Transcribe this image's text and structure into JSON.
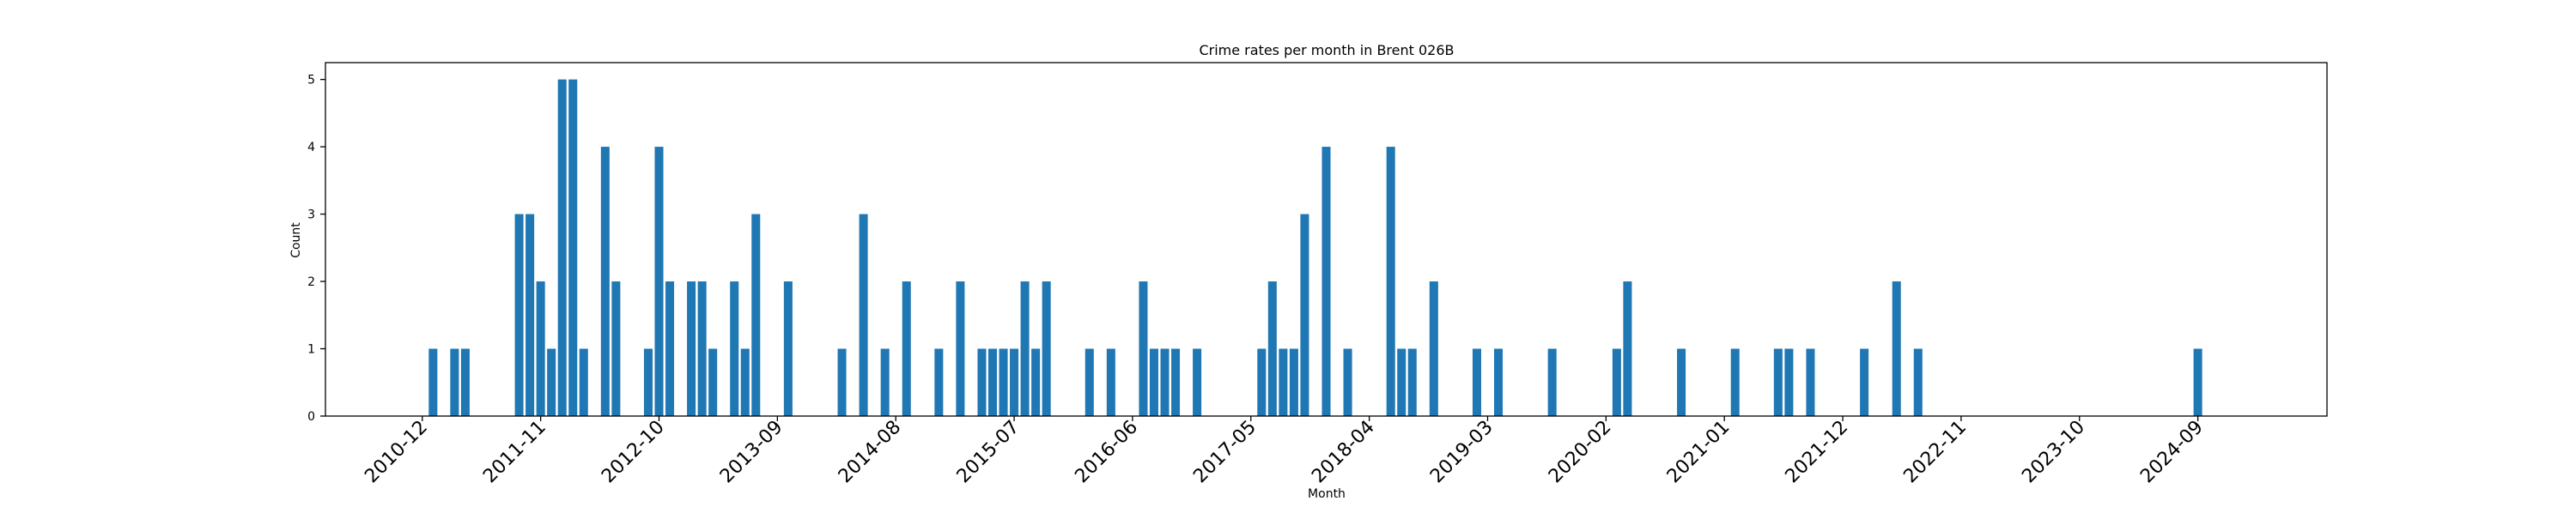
{
  "chart_data": {
    "type": "bar",
    "title": "Crime rates per month in Brent 026B",
    "xlabel": "Month",
    "ylabel": "Count",
    "x_tick_labels": [
      "2010-12",
      "2011-11",
      "2012-10",
      "2013-09",
      "2014-08",
      "2015-07",
      "2016-06",
      "2017-05",
      "2018-04",
      "2019-03",
      "2020-02",
      "2021-01",
      "2021-12",
      "2022-11",
      "2023-10",
      "2024-09"
    ],
    "y_ticks": [
      0,
      1,
      2,
      3,
      4,
      5
    ],
    "ylim": [
      0,
      5.25
    ],
    "xlim": [
      "2010-03",
      "2025-09"
    ],
    "x_tick_rotation_deg": 45,
    "grid": false,
    "bar_color": "#1f77b4",
    "categories": [
      "2011-01",
      "2011-03",
      "2011-04",
      "2011-09",
      "2011-10",
      "2011-11",
      "2011-12",
      "2012-01",
      "2012-02",
      "2012-03",
      "2012-05",
      "2012-06",
      "2012-09",
      "2012-10",
      "2012-11",
      "2013-01",
      "2013-02",
      "2013-03",
      "2013-05",
      "2013-06",
      "2013-07",
      "2013-10",
      "2014-03",
      "2014-05",
      "2014-07",
      "2014-09",
      "2014-12",
      "2015-02",
      "2015-04",
      "2015-05",
      "2015-06",
      "2015-07",
      "2015-08",
      "2015-09",
      "2015-10",
      "2016-02",
      "2016-04",
      "2016-07",
      "2016-08",
      "2016-09",
      "2016-10",
      "2016-12",
      "2017-06",
      "2017-07",
      "2017-08",
      "2017-09",
      "2017-10",
      "2017-12",
      "2018-02",
      "2018-06",
      "2018-07",
      "2018-08",
      "2018-10",
      "2019-02",
      "2019-04",
      "2019-09",
      "2020-03",
      "2020-04",
      "2020-09",
      "2021-02",
      "2021-06",
      "2021-07",
      "2021-09",
      "2022-02",
      "2022-05",
      "2022-07",
      "2024-09"
    ],
    "values": [
      1,
      1,
      1,
      3,
      3,
      2,
      1,
      5,
      5,
      1,
      4,
      2,
      1,
      4,
      2,
      2,
      2,
      1,
      2,
      1,
      3,
      2,
      1,
      3,
      1,
      2,
      1,
      2,
      1,
      1,
      1,
      1,
      2,
      1,
      2,
      1,
      1,
      2,
      1,
      1,
      1,
      1,
      1,
      2,
      1,
      1,
      3,
      4,
      1,
      4,
      1,
      1,
      2,
      1,
      1,
      1,
      1,
      2,
      1,
      1,
      1,
      1,
      1,
      1,
      2,
      1,
      1
    ]
  }
}
